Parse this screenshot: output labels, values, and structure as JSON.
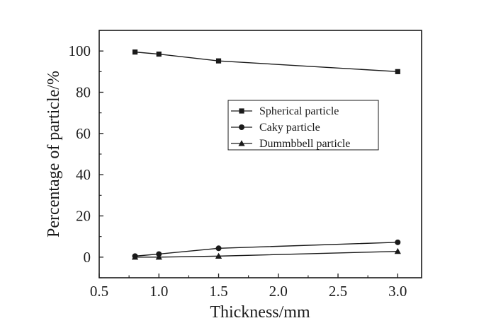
{
  "chart_data": {
    "type": "line",
    "title": "",
    "xlabel": "Thickness/mm",
    "ylabel": "Percentage of particle/%",
    "xlim": [
      0.5,
      3.2
    ],
    "ylim": [
      -10,
      110
    ],
    "xticks": [
      0.5,
      1.0,
      1.5,
      2.0,
      2.5,
      3.0
    ],
    "xtick_labels": [
      "0.5",
      "1.0",
      "1.5",
      "2.0",
      "2.5",
      "3.0"
    ],
    "yticks": [
      0,
      20,
      40,
      60,
      80,
      100
    ],
    "ytick_labels": [
      "0",
      "20",
      "40",
      "60",
      "80",
      "100"
    ],
    "x": [
      0.8,
      1.0,
      1.5,
      3.0
    ],
    "series": [
      {
        "name": "Spherical particle",
        "marker": "square",
        "values": [
          99.5,
          98.5,
          95.2,
          90.0
        ]
      },
      {
        "name": "Caky particle",
        "marker": "circle",
        "values": [
          0.5,
          1.5,
          4.3,
          7.2
        ]
      },
      {
        "name": "Dummbbell particle",
        "marker": "triangle",
        "values": [
          0.0,
          0.0,
          0.5,
          2.8
        ]
      }
    ],
    "legend_position": "center-right",
    "grid": false,
    "line_color": "#1a1a1a"
  }
}
